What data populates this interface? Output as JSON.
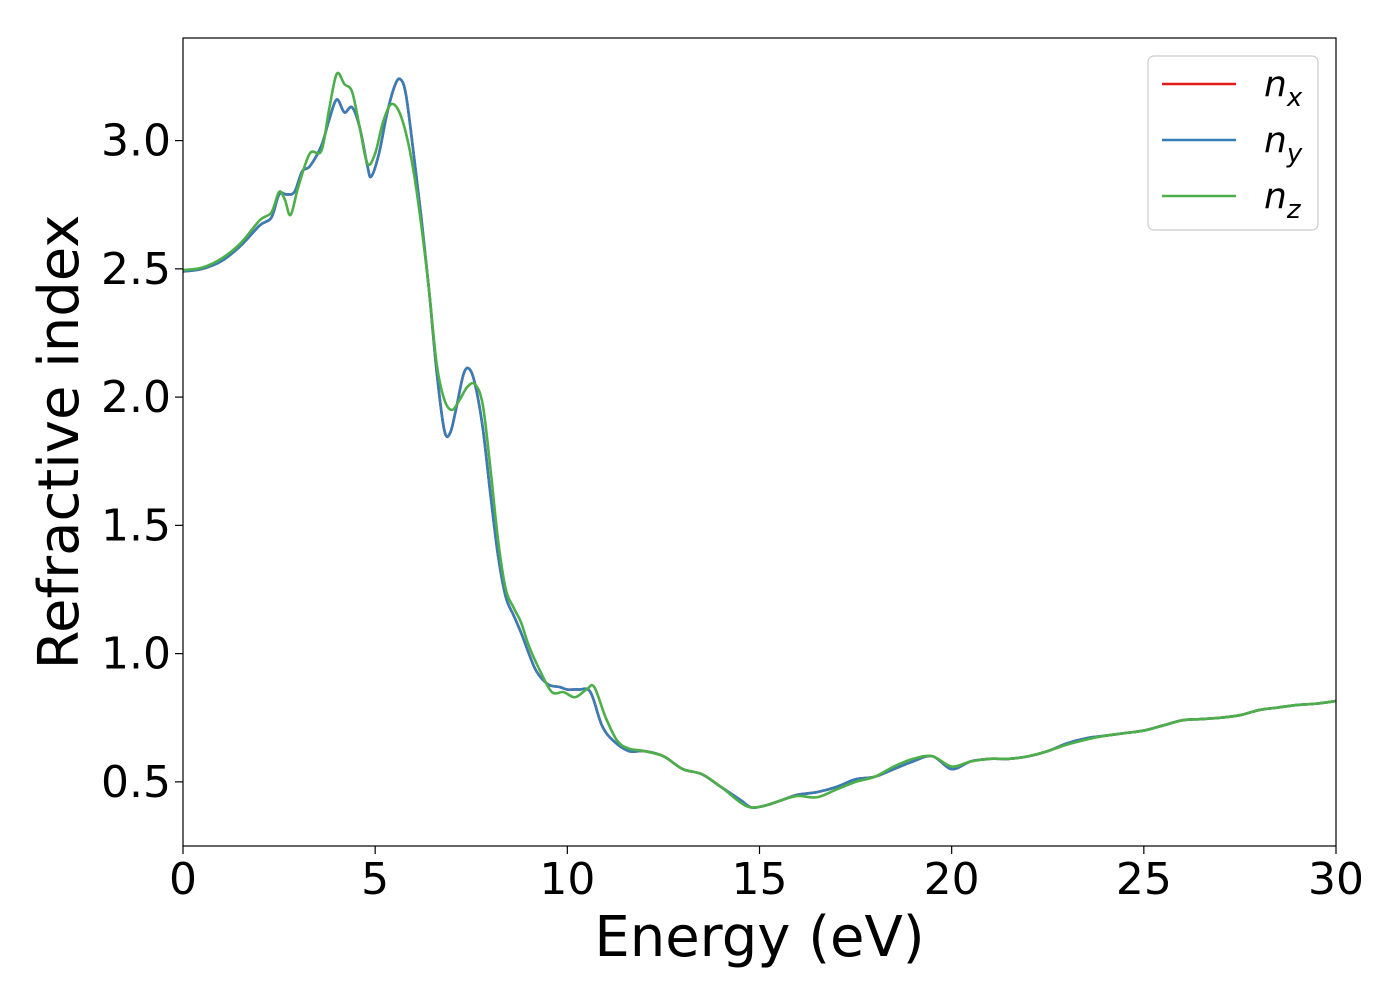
{
  "chart_data": {
    "type": "line",
    "xlabel": "Energy (eV)",
    "ylabel": "Refractive index",
    "xlim": [
      0,
      30
    ],
    "ylim": [
      0.25,
      3.4
    ],
    "xticks": [
      0,
      5,
      10,
      15,
      20,
      25,
      30
    ],
    "xtick_labels": [
      "0",
      "5",
      "10",
      "15",
      "20",
      "25",
      "30"
    ],
    "yticks": [
      0.5,
      1.0,
      1.5,
      2.0,
      2.5,
      3.0
    ],
    "ytick_labels": [
      "0.5",
      "1.0",
      "1.5",
      "2.0",
      "2.5",
      "3.0"
    ],
    "grid": false,
    "legend_position": "top-right",
    "series": [
      {
        "name": "n_x",
        "label_main": "n",
        "label_sub": "x",
        "color": "#e41a1c",
        "x": [
          0,
          0.5,
          1,
          1.5,
          2,
          2.3,
          2.5,
          2.7,
          2.9,
          3.1,
          3.3,
          3.6,
          3.8,
          4.0,
          4.2,
          4.4,
          4.6,
          4.8,
          4.9,
          5.1,
          5.3,
          5.5,
          5.65,
          5.8,
          6.0,
          6.2,
          6.4,
          6.6,
          6.8,
          6.95,
          7.1,
          7.3,
          7.45,
          7.6,
          7.8,
          8.0,
          8.2,
          8.4,
          8.6,
          8.8,
          9.0,
          9.2,
          9.5,
          9.8,
          10.0,
          10.3,
          10.6,
          10.9,
          11.2,
          11.6,
          12.0,
          12.5,
          13.0,
          13.5,
          14.0,
          14.5,
          14.8,
          15.2,
          15.6,
          16.0,
          16.5,
          17.0,
          17.5,
          18.0,
          18.5,
          19.0,
          19.5,
          20.0,
          20.5,
          21.0,
          21.5,
          22.0,
          22.5,
          23.0,
          23.5,
          24.0,
          24.5,
          25.0,
          25.5,
          26.0,
          26.5,
          27.0,
          27.5,
          28.0,
          28.5,
          29.0,
          29.5,
          30.0
        ],
        "y": [
          2.49,
          2.5,
          2.53,
          2.59,
          2.67,
          2.7,
          2.79,
          2.79,
          2.8,
          2.88,
          2.9,
          2.98,
          3.08,
          3.16,
          3.11,
          3.13,
          3.05,
          2.9,
          2.86,
          2.95,
          3.1,
          3.21,
          3.24,
          3.18,
          2.95,
          2.7,
          2.42,
          2.1,
          1.87,
          1.86,
          1.95,
          2.09,
          2.11,
          2.05,
          1.88,
          1.62,
          1.38,
          1.22,
          1.15,
          1.08,
          1.0,
          0.93,
          0.88,
          0.87,
          0.86,
          0.86,
          0.85,
          0.72,
          0.66,
          0.62,
          0.62,
          0.6,
          0.55,
          0.53,
          0.48,
          0.43,
          0.4,
          0.41,
          0.43,
          0.45,
          0.46,
          0.48,
          0.51,
          0.52,
          0.55,
          0.58,
          0.6,
          0.55,
          0.58,
          0.59,
          0.59,
          0.6,
          0.62,
          0.65,
          0.67,
          0.68,
          0.69,
          0.7,
          0.72,
          0.74,
          0.745,
          0.75,
          0.76,
          0.78,
          0.79,
          0.8,
          0.805,
          0.815
        ]
      },
      {
        "name": "n_y",
        "label_main": "n",
        "label_sub": "y",
        "color": "#377eb8",
        "x": [
          0,
          0.5,
          1,
          1.5,
          2,
          2.3,
          2.5,
          2.7,
          2.9,
          3.1,
          3.3,
          3.6,
          3.8,
          4.0,
          4.2,
          4.4,
          4.6,
          4.8,
          4.9,
          5.1,
          5.3,
          5.5,
          5.65,
          5.8,
          6.0,
          6.2,
          6.4,
          6.6,
          6.8,
          6.95,
          7.1,
          7.3,
          7.45,
          7.6,
          7.8,
          8.0,
          8.2,
          8.4,
          8.6,
          8.8,
          9.0,
          9.2,
          9.5,
          9.8,
          10.0,
          10.3,
          10.6,
          10.9,
          11.2,
          11.6,
          12.0,
          12.5,
          13.0,
          13.5,
          14.0,
          14.5,
          14.8,
          15.2,
          15.6,
          16.0,
          16.5,
          17.0,
          17.5,
          18.0,
          18.5,
          19.0,
          19.5,
          20.0,
          20.5,
          21.0,
          21.5,
          22.0,
          22.5,
          23.0,
          23.5,
          24.0,
          24.5,
          25.0,
          25.5,
          26.0,
          26.5,
          27.0,
          27.5,
          28.0,
          28.5,
          29.0,
          29.5,
          30.0
        ],
        "y": [
          2.49,
          2.5,
          2.53,
          2.59,
          2.67,
          2.7,
          2.79,
          2.79,
          2.8,
          2.88,
          2.9,
          2.98,
          3.08,
          3.16,
          3.11,
          3.13,
          3.05,
          2.9,
          2.86,
          2.95,
          3.1,
          3.21,
          3.24,
          3.18,
          2.95,
          2.7,
          2.42,
          2.1,
          1.87,
          1.86,
          1.95,
          2.09,
          2.11,
          2.05,
          1.88,
          1.62,
          1.38,
          1.22,
          1.15,
          1.08,
          1.0,
          0.93,
          0.88,
          0.87,
          0.86,
          0.86,
          0.85,
          0.72,
          0.66,
          0.62,
          0.62,
          0.6,
          0.55,
          0.53,
          0.48,
          0.43,
          0.4,
          0.41,
          0.43,
          0.45,
          0.46,
          0.48,
          0.51,
          0.52,
          0.55,
          0.58,
          0.6,
          0.55,
          0.58,
          0.59,
          0.59,
          0.6,
          0.62,
          0.65,
          0.67,
          0.68,
          0.69,
          0.7,
          0.72,
          0.74,
          0.745,
          0.75,
          0.76,
          0.78,
          0.79,
          0.8,
          0.805,
          0.815
        ]
      },
      {
        "name": "n_z",
        "label_main": "n",
        "label_sub": "z",
        "color": "#4daf4a",
        "x": [
          0,
          0.5,
          1,
          1.5,
          2,
          2.3,
          2.5,
          2.65,
          2.8,
          3.0,
          3.3,
          3.6,
          3.8,
          4.0,
          4.2,
          4.4,
          4.6,
          4.8,
          5.0,
          5.2,
          5.4,
          5.6,
          5.8,
          6.0,
          6.2,
          6.4,
          6.6,
          6.8,
          7.0,
          7.2,
          7.4,
          7.6,
          7.8,
          8.0,
          8.2,
          8.4,
          8.6,
          8.8,
          9.0,
          9.3,
          9.6,
          9.9,
          10.2,
          10.5,
          10.7,
          11.0,
          11.3,
          11.6,
          12.0,
          12.5,
          13.0,
          13.5,
          14.0,
          14.5,
          14.8,
          15.2,
          15.6,
          16.0,
          16.5,
          17.0,
          17.5,
          18.0,
          18.5,
          19.0,
          19.5,
          20.0,
          20.5,
          21.0,
          21.5,
          22.0,
          22.5,
          23.0,
          23.5,
          24.0,
          24.5,
          25.0,
          25.5,
          26.0,
          26.5,
          27.0,
          27.5,
          28.0,
          28.5,
          29.0,
          29.5,
          30.0
        ],
        "y": [
          2.495,
          2.505,
          2.54,
          2.6,
          2.69,
          2.72,
          2.8,
          2.77,
          2.71,
          2.82,
          2.95,
          2.96,
          3.12,
          3.26,
          3.22,
          3.19,
          3.05,
          2.91,
          2.95,
          3.07,
          3.14,
          3.12,
          3.03,
          2.88,
          2.67,
          2.42,
          2.13,
          1.99,
          1.95,
          1.99,
          2.04,
          2.05,
          1.97,
          1.72,
          1.44,
          1.25,
          1.18,
          1.12,
          1.03,
          0.93,
          0.85,
          0.85,
          0.83,
          0.86,
          0.87,
          0.75,
          0.66,
          0.63,
          0.62,
          0.6,
          0.55,
          0.53,
          0.48,
          0.42,
          0.4,
          0.41,
          0.43,
          0.445,
          0.44,
          0.47,
          0.5,
          0.52,
          0.56,
          0.59,
          0.6,
          0.56,
          0.58,
          0.59,
          0.59,
          0.6,
          0.62,
          0.645,
          0.665,
          0.68,
          0.69,
          0.7,
          0.72,
          0.74,
          0.745,
          0.75,
          0.76,
          0.78,
          0.79,
          0.8,
          0.805,
          0.815
        ]
      }
    ]
  }
}
